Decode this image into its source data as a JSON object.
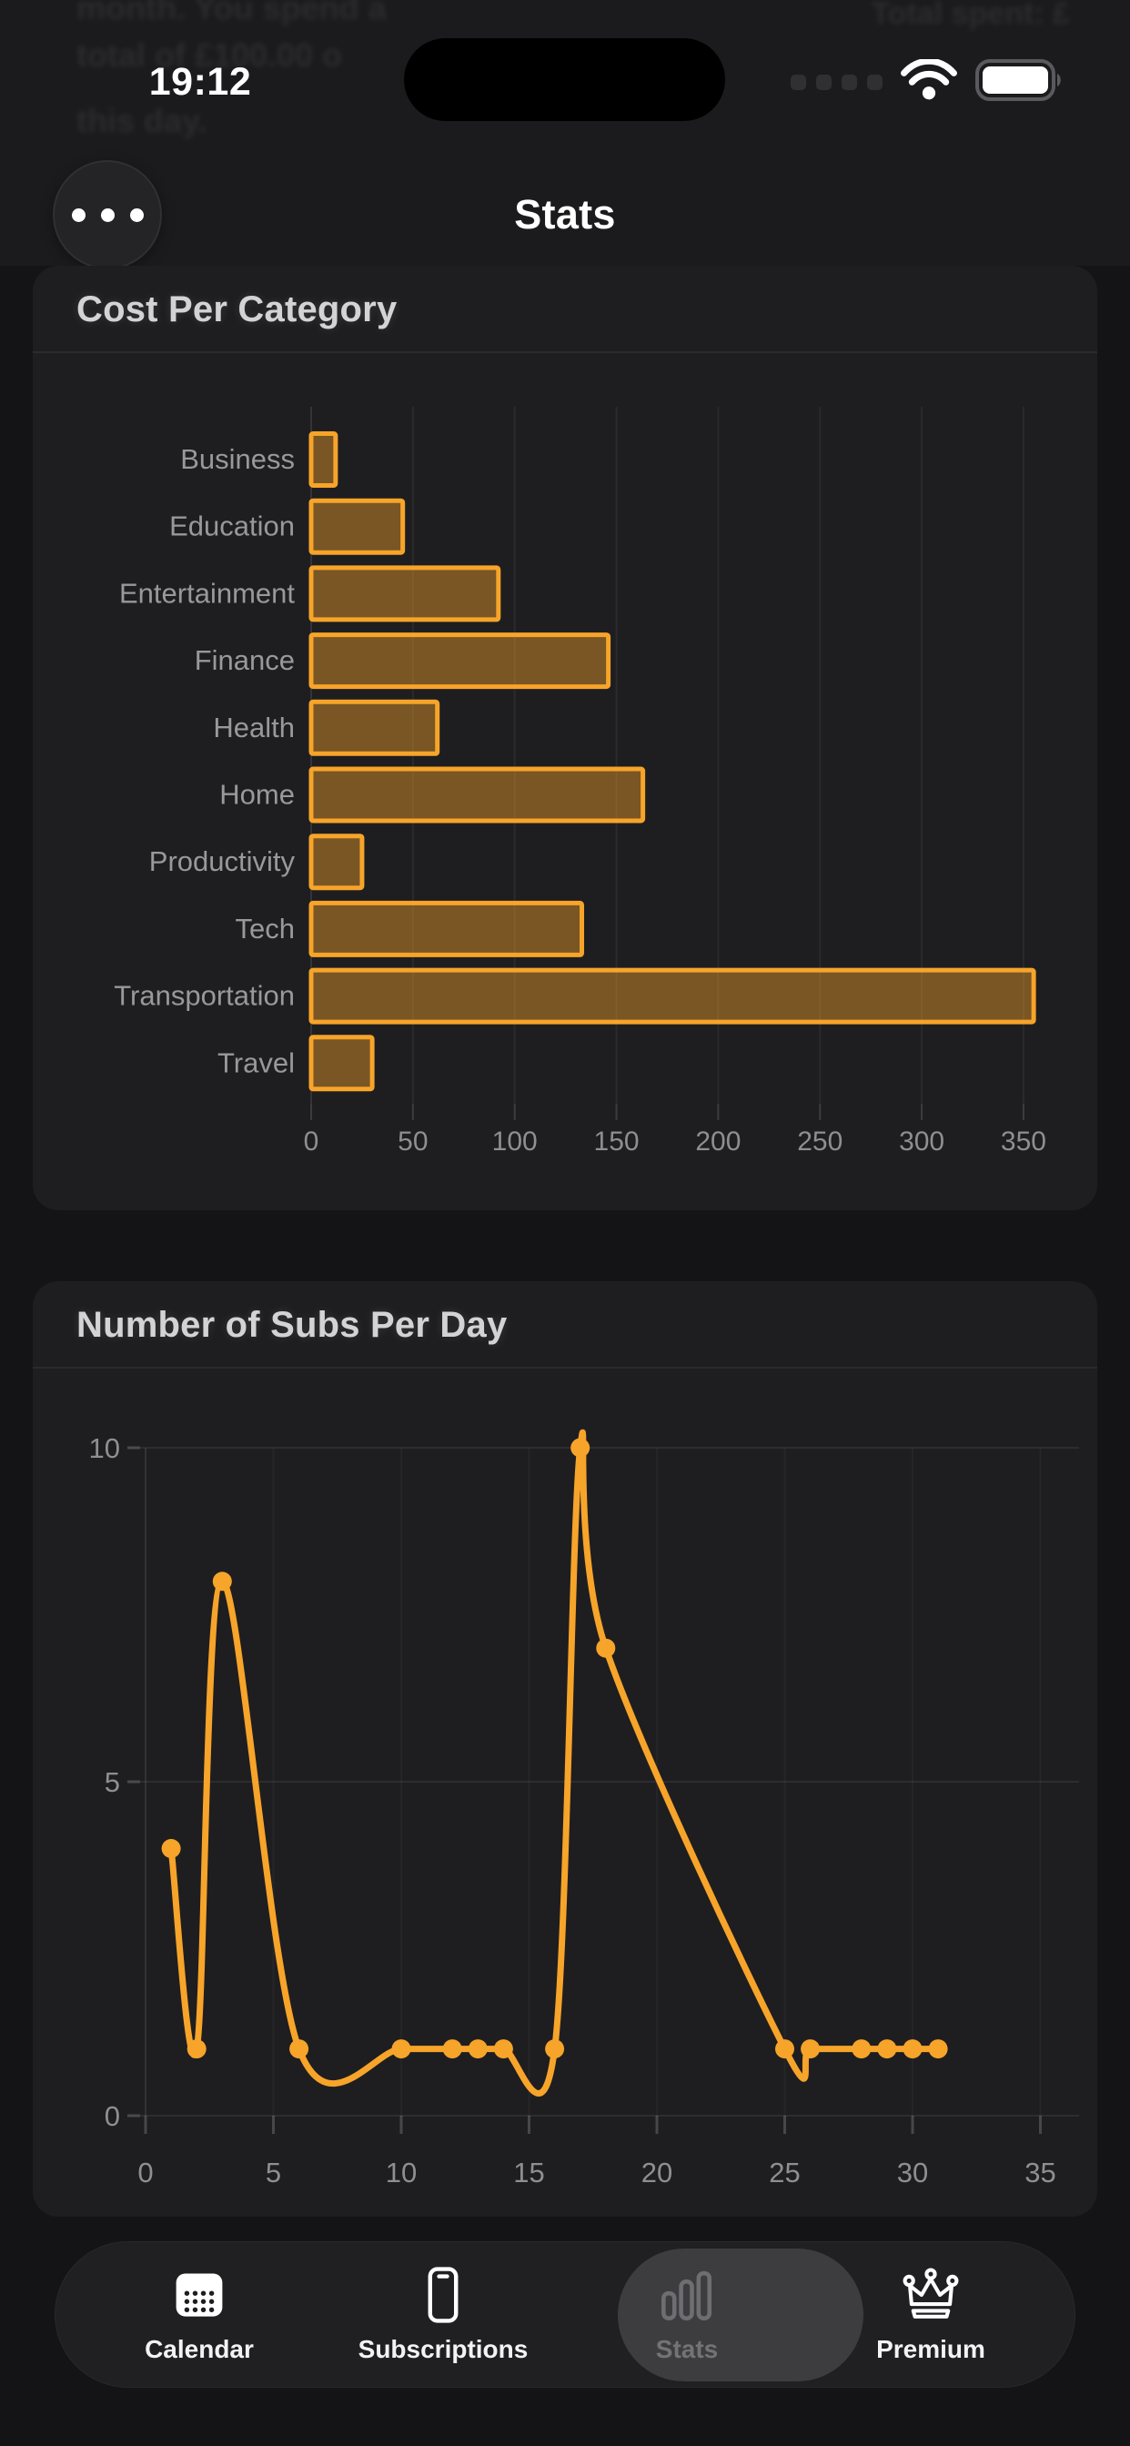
{
  "status_bar": {
    "time": "19:12"
  },
  "background_text": {
    "line1": "month. You spend a",
    "line2": "total of £100.00 o",
    "line3": "this day.",
    "right": "Total spent: £"
  },
  "header": {
    "title": "Stats",
    "menu_icon": "ellipsis-icon"
  },
  "chart_data": [
    {
      "type": "bar",
      "orientation": "horizontal",
      "title": "Cost Per Category",
      "categories": [
        "Business",
        "Education",
        "Entertainment",
        "Finance",
        "Health",
        "Home",
        "Productivity",
        "Tech",
        "Transportation",
        "Travel"
      ],
      "values": [
        12,
        45,
        92,
        146,
        62,
        163,
        25,
        133,
        355,
        30
      ],
      "xticks": [
        0,
        50,
        100,
        150,
        200,
        250,
        300,
        350
      ],
      "xlim": [
        0,
        378
      ],
      "grid": true,
      "legend": "none"
    },
    {
      "type": "line",
      "title": "Number of Subs Per Day",
      "x": [
        1,
        2,
        3,
        6,
        10,
        12,
        13,
        14,
        16,
        17,
        18,
        25,
        26,
        28,
        29,
        30,
        31
      ],
      "y": [
        4,
        1,
        8,
        1,
        1,
        1,
        1,
        1,
        1,
        10,
        7,
        1,
        1,
        1,
        1,
        1,
        1
      ],
      "xticks": [
        0,
        5,
        10,
        15,
        20,
        25,
        30,
        35
      ],
      "yticks": [
        0,
        5,
        10
      ],
      "xlim": [
        0,
        36.5
      ],
      "ylim": [
        0,
        10
      ],
      "smooth": true,
      "grid": true,
      "legend": "none"
    }
  ],
  "tab_bar": {
    "items": [
      {
        "label": "Calendar",
        "icon": "calendar-icon",
        "active": false
      },
      {
        "label": "Subscriptions",
        "icon": "phone-icon",
        "active": false
      },
      {
        "label": "Stats",
        "icon": "bar-chart-icon",
        "active": true
      },
      {
        "label": "Premium",
        "icon": "crown-icon",
        "active": false
      }
    ]
  },
  "colors": {
    "accent": "#F7A42A",
    "bar_fill": "rgba(247,164,42,0.42)",
    "axis_text": "#8E8E93",
    "category_text": "#98989D",
    "title_text": "#D3D3D5",
    "card_bg": "#1E1E20",
    "page_bg": "#141416",
    "tab_bar_bg": "#202023",
    "active_pill": "#3D3D40",
    "dim_label": "#737377",
    "grid_line": "rgba(255,255,255,0.055)"
  }
}
